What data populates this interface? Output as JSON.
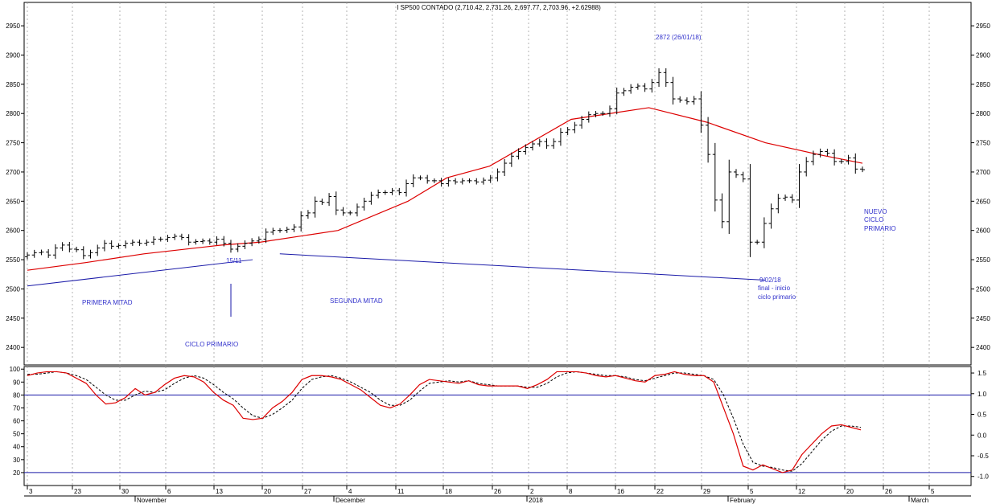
{
  "title": "I SP500 CONTADO (2,710.42, 2,731.26, 2,697.77, 2,703.96, +2.62988)",
  "colors": {
    "price_bars": "#000000",
    "moving_average": "#dd0000",
    "trendline": "#1a1aa8",
    "annotation": "#3333cc",
    "stoch_k": "#dd0000",
    "stoch_d": "#000000",
    "levels": "#1a1aa8",
    "grid": "#a0a0a0"
  },
  "annotations": {
    "peak": "2872 (26/01/18)",
    "date_1511": "15/11",
    "primera_mitad": "PRIMERA MITAD",
    "segunda_mitad": "SEGUNDA MITAD",
    "ciclo_primario": "CICLO PRIMARIO",
    "final_date": "9/02/18",
    "final_line1": "final - inicio",
    "final_line2": "ciclo primario",
    "nuevo_1": "NUEVO",
    "nuevo_2": "CICLO",
    "nuevo_3": "PRIMARIO"
  },
  "chart_data": [
    {
      "type": "ohlc",
      "panel": "price",
      "title": "I SP500 CONTADO (2,710.42, 2,731.26, 2,697.77, 2,703.96, +2.62988)",
      "yticks": [
        2400,
        2450,
        2500,
        2550,
        2600,
        2650,
        2700,
        2750,
        2800,
        2850,
        2900,
        2950
      ],
      "ylim": [
        2370,
        2990
      ],
      "grid": "vertical dotted lines at week ticks",
      "series": [
        {
          "name": "",
          "type": "ohlc",
          "values_close": [
            2558,
            2562,
            2563,
            2558,
            2570,
            2575,
            2568,
            2567,
            2557,
            2562,
            2570,
            2578,
            2573,
            2574,
            2578,
            2580,
            2578,
            2580,
            2585,
            2585,
            2588,
            2590,
            2588,
            2580,
            2581,
            2582,
            2580,
            2585,
            2578,
            2568,
            2573,
            2578,
            2582,
            2585,
            2597,
            2600,
            2600,
            2602,
            2606,
            2625,
            2630,
            2650,
            2648,
            2658,
            2635,
            2630,
            2630,
            2640,
            2650,
            2660,
            2665,
            2665,
            2668,
            2665,
            2680,
            2690,
            2690,
            2685,
            2685,
            2680,
            2685,
            2683,
            2685,
            2685,
            2683,
            2686,
            2690,
            2700,
            2715,
            2727,
            2735,
            2742,
            2748,
            2752,
            2745,
            2752,
            2768,
            2772,
            2780,
            2790,
            2798,
            2800,
            2800,
            2808,
            2835,
            2839,
            2845,
            2847,
            2842,
            2853,
            2870,
            2853,
            2825,
            2823,
            2820,
            2825,
            2780,
            2730,
            2652,
            2615,
            2700,
            2695,
            2688,
            2580,
            2580,
            2612,
            2637,
            2655,
            2657,
            2652,
            2700,
            2718,
            2730,
            2735,
            2732,
            2718,
            2718,
            2724,
            2705,
            2704
          ]
        }
      ]
    },
    {
      "type": "line",
      "panel": "price",
      "series": [
        {
          "name": "",
          "description_values": "moving average",
          "points": [
            [
              0,
              2532
            ],
            [
              15,
              2545
            ],
            [
              30,
              2560
            ],
            [
              50,
              2575
            ],
            [
              60,
              2580
            ],
            [
              80,
              2600
            ],
            [
              98,
              2650
            ],
            [
              108,
              2690
            ],
            [
              119,
              2710
            ],
            [
              140,
              2790
            ],
            [
              160,
              2810
            ],
            [
              175,
              2785
            ],
            [
              190,
              2750
            ],
            [
              205,
              2728
            ],
            [
              215,
              2715
            ]
          ]
        }
      ]
    },
    {
      "type": "line",
      "panel": "price",
      "series": [
        {
          "name": "",
          "points": [
            [
              0,
              2505
            ],
            [
              58,
              2550
            ]
          ]
        },
        {
          "name": "",
          "points": [
            [
              65,
              2560
            ],
            [
              190,
              2515
            ]
          ]
        }
      ]
    },
    {
      "type": "line",
      "panel": "oscillator",
      "yticks_left": [
        20,
        30,
        40,
        50,
        60,
        70,
        80,
        90,
        100
      ],
      "yticks_right": [
        -1.0,
        -0.5,
        0.0,
        0.5,
        1.0,
        1.5
      ],
      "ylim": [
        10,
        102
      ],
      "levels": [
        80,
        20
      ],
      "xticks": [
        "3",
        "23",
        "30",
        "6",
        "13",
        "20",
        "27",
        "4",
        "11",
        "18",
        "26",
        "2",
        "8",
        "16",
        "22",
        "29",
        "5",
        "12",
        "20",
        "26",
        "5"
      ],
      "month_labels": [
        "November",
        "December",
        "2018",
        "February",
        "March"
      ],
      "series": [
        {
          "name": "",
          "values": [
            95,
            97,
            98,
            98,
            97,
            93,
            89,
            80,
            73,
            74,
            78,
            85,
            80,
            82,
            88,
            93,
            95,
            94,
            90,
            82,
            76,
            72,
            62,
            61,
            62,
            70,
            75,
            82,
            92,
            95,
            95,
            94,
            92,
            88,
            84,
            78,
            72,
            70,
            73,
            80,
            88,
            92,
            91,
            90,
            89,
            91,
            88,
            87,
            87,
            87,
            87,
            85,
            88,
            92,
            98,
            98,
            98,
            97,
            95,
            94,
            95,
            93,
            91,
            90,
            95,
            96,
            98,
            96,
            95,
            95,
            90,
            70,
            50,
            25,
            22,
            26,
            23,
            20,
            22,
            34,
            42,
            50,
            56,
            57,
            55,
            53
          ]
        },
        {
          "name": "",
          "values": [
            96,
            96,
            97,
            98,
            97,
            95,
            92,
            86,
            80,
            76,
            76,
            80,
            83,
            82,
            84,
            89,
            93,
            95,
            93,
            88,
            82,
            77,
            70,
            64,
            62,
            65,
            70,
            76,
            85,
            92,
            94,
            95,
            93,
            90,
            86,
            82,
            76,
            72,
            72,
            76,
            83,
            89,
            90,
            91,
            90,
            91,
            89,
            88,
            87,
            87,
            87,
            86,
            86,
            89,
            94,
            97,
            98,
            97,
            96,
            95,
            95,
            94,
            92,
            91,
            93,
            95,
            97,
            97,
            96,
            95,
            92,
            80,
            62,
            42,
            28,
            25,
            24,
            22,
            21,
            27,
            36,
            45,
            52,
            56,
            56,
            55
          ]
        }
      ]
    }
  ]
}
